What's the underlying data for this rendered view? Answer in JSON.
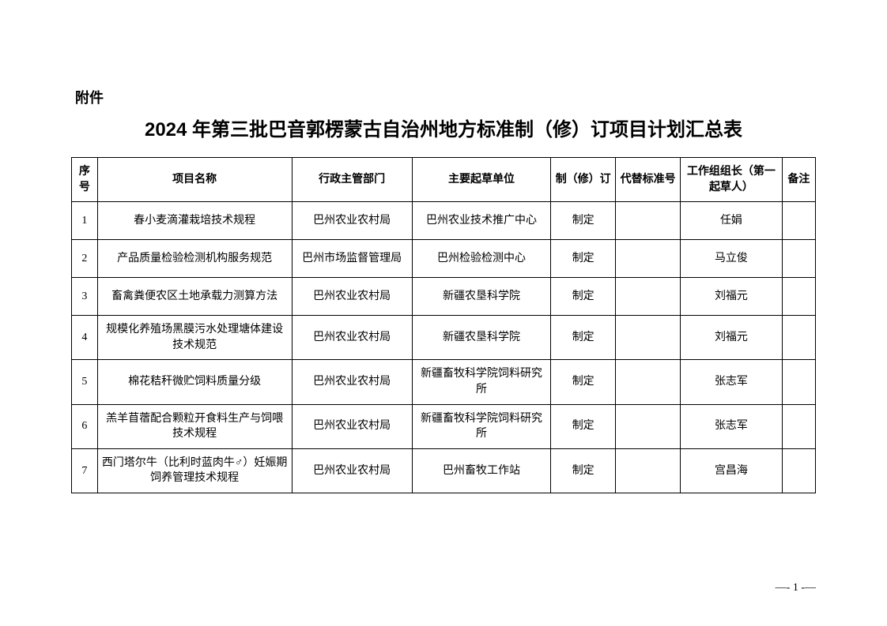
{
  "attachment_label": "附件",
  "title": "2024 年第三批巴音郭楞蒙古自治州地方标准制（修）订项目计划汇总表",
  "table": {
    "columns": [
      "序号",
      "项目名称",
      "行政主管部门",
      "主要起草单位",
      "制（修）订",
      "代替标准号",
      "工作组组长（第一起草人）",
      "备注"
    ],
    "rows": [
      {
        "index": "1",
        "name": "春小麦滴灌栽培技术规程",
        "dept": "巴州农业农村局",
        "draft_unit": "巴州农业技术推广中心",
        "type": "制定",
        "replace": "",
        "leader": "任娟",
        "note": ""
      },
      {
        "index": "2",
        "name": "产品质量检验检测机构服务规范",
        "dept": "巴州市场监督管理局",
        "draft_unit": "巴州检验检测中心",
        "type": "制定",
        "replace": "",
        "leader": "马立俊",
        "note": ""
      },
      {
        "index": "3",
        "name": "畜禽粪便农区土地承载力测算方法",
        "dept": "巴州农业农村局",
        "draft_unit": "新疆农垦科学院",
        "type": "制定",
        "replace": "",
        "leader": "刘福元",
        "note": ""
      },
      {
        "index": "4",
        "name": "规模化养殖场黑膜污水处理塘体建设技术规范",
        "dept": "巴州农业农村局",
        "draft_unit": "新疆农垦科学院",
        "type": "制定",
        "replace": "",
        "leader": "刘福元",
        "note": ""
      },
      {
        "index": "5",
        "name": "棉花秸秆微贮饲料质量分级",
        "dept": "巴州农业农村局",
        "draft_unit": "新疆畜牧科学院饲料研究所",
        "type": "制定",
        "replace": "",
        "leader": "张志军",
        "note": ""
      },
      {
        "index": "6",
        "name": "羔羊苜蓿配合颗粒开食料生产与饲喂技术规程",
        "dept": "巴州农业农村局",
        "draft_unit": "新疆畜牧科学院饲料研究所",
        "type": "制定",
        "replace": "",
        "leader": "张志军",
        "note": ""
      },
      {
        "index": "7",
        "name": "西门塔尔牛（比利时蓝肉牛♂）妊娠期饲养管理技术规程",
        "dept": "巴州农业农村局",
        "draft_unit": "巴州畜牧工作站",
        "type": "制定",
        "replace": "",
        "leader": "宫昌海",
        "note": ""
      }
    ]
  },
  "page_number": "—- 1 -—"
}
